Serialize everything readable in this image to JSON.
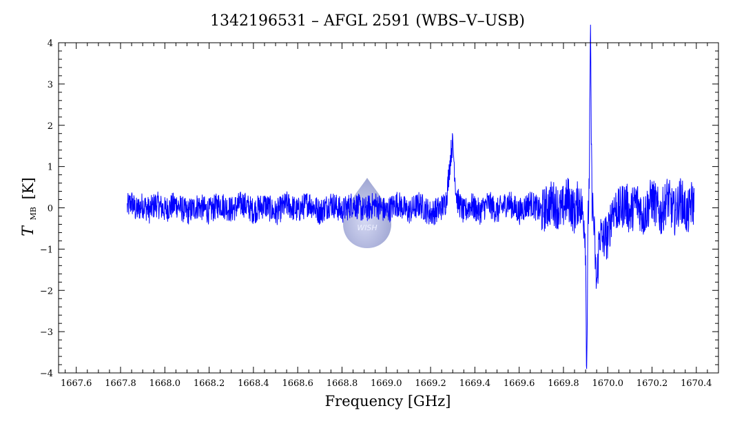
{
  "chart_data": {
    "type": "line",
    "title": "1342196531 – AFGL 2591 (WBS–V–USB)",
    "xlabel": "Frequency [GHz]",
    "ylabel_main": "T",
    "ylabel_sub": "MB",
    "ylabel_unit": "[K]",
    "xlim": [
      1667.52,
      1670.5
    ],
    "ylim": [
      -4,
      4
    ],
    "xticks": [
      "1667.6",
      "1667.8",
      "1668.0",
      "1668.2",
      "1668.4",
      "1668.6",
      "1668.8",
      "1669.0",
      "1669.2",
      "1669.4",
      "1669.6",
      "1669.8",
      "1670.0",
      "1670.2",
      "1670.4"
    ],
    "yticks": [
      "4",
      "3",
      "2",
      "1",
      "0",
      "−1",
      "−2",
      "−3",
      "−4"
    ],
    "grid": false,
    "series": [
      {
        "color": "#0000ff",
        "x_range": [
          1667.83,
          1670.39
        ],
        "points": [
          [
            1667.83,
            0.05
          ],
          [
            1667.85,
            0.55
          ],
          [
            1667.87,
            -0.3
          ],
          [
            1667.9,
            0.3
          ],
          [
            1667.93,
            -0.25
          ],
          [
            1667.96,
            0.4
          ],
          [
            1668.0,
            -0.2
          ],
          [
            1668.05,
            0.35
          ],
          [
            1668.1,
            -0.45
          ],
          [
            1668.15,
            0.2
          ],
          [
            1668.2,
            -0.35
          ],
          [
            1668.25,
            0.4
          ],
          [
            1668.3,
            -0.2
          ],
          [
            1668.35,
            0.45
          ],
          [
            1668.4,
            -0.3
          ],
          [
            1668.45,
            0.3
          ],
          [
            1668.5,
            -0.5
          ],
          [
            1668.55,
            0.35
          ],
          [
            1668.6,
            -0.3
          ],
          [
            1668.65,
            0.5
          ],
          [
            1668.7,
            -0.4
          ],
          [
            1668.75,
            0.45
          ],
          [
            1668.8,
            -0.3
          ],
          [
            1668.85,
            0.4
          ],
          [
            1668.9,
            -0.25
          ],
          [
            1668.95,
            0.35
          ],
          [
            1669.0,
            -0.35
          ],
          [
            1669.05,
            0.45
          ],
          [
            1669.1,
            -0.4
          ],
          [
            1669.15,
            0.35
          ],
          [
            1669.2,
            -0.55
          ],
          [
            1669.24,
            -0.1
          ],
          [
            1669.27,
            0.4
          ],
          [
            1669.29,
            1.1
          ],
          [
            1669.3,
            1.45
          ],
          [
            1669.31,
            0.9
          ],
          [
            1669.33,
            0.4
          ],
          [
            1669.35,
            -0.5
          ],
          [
            1669.38,
            0.3
          ],
          [
            1669.42,
            -0.4
          ],
          [
            1669.46,
            0.45
          ],
          [
            1669.5,
            -0.35
          ],
          [
            1669.55,
            0.55
          ],
          [
            1669.6,
            -0.4
          ],
          [
            1669.65,
            0.5
          ],
          [
            1669.7,
            -0.45
          ],
          [
            1669.75,
            0.6
          ],
          [
            1669.79,
            -0.3
          ],
          [
            1669.82,
            0.95
          ],
          [
            1669.85,
            -0.5
          ],
          [
            1669.87,
            0.9
          ],
          [
            1669.89,
            -0.8
          ],
          [
            1669.9,
            -2.4
          ],
          [
            1669.905,
            -3.15
          ],
          [
            1669.91,
            -1.5
          ],
          [
            1669.915,
            1.0
          ],
          [
            1669.92,
            2.5
          ],
          [
            1669.922,
            3.35
          ],
          [
            1669.925,
            2.2
          ],
          [
            1669.93,
            0.6
          ],
          [
            1669.94,
            -0.9
          ],
          [
            1669.95,
            -1.7
          ],
          [
            1669.96,
            -0.6
          ],
          [
            1669.975,
            -1.25
          ],
          [
            1669.99,
            -0.2
          ],
          [
            1670.0,
            -0.9
          ],
          [
            1670.02,
            0.7
          ],
          [
            1670.05,
            -0.3
          ],
          [
            1670.08,
            0.6
          ],
          [
            1670.1,
            -0.6
          ],
          [
            1670.13,
            0.7
          ],
          [
            1670.16,
            -0.8
          ],
          [
            1670.2,
            0.9
          ],
          [
            1670.24,
            -0.7
          ],
          [
            1670.27,
            1.0
          ],
          [
            1670.3,
            -0.6
          ],
          [
            1670.33,
            0.9
          ],
          [
            1670.36,
            -0.75
          ],
          [
            1670.38,
            0.6
          ],
          [
            1670.39,
            0.2
          ]
        ]
      }
    ]
  },
  "watermark": {
    "label": "WISH",
    "color": "#8a93cc"
  }
}
